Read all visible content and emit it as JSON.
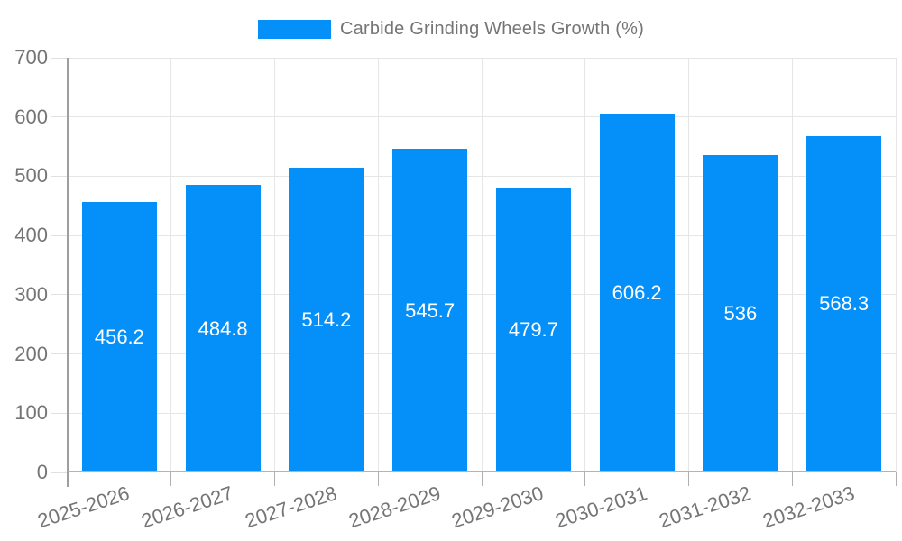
{
  "legend": {
    "label": "Carbide Grinding Wheels Growth (%)",
    "swatch_color": "#0590f9"
  },
  "chart_data": {
    "type": "bar",
    "title": "Carbide Grinding Wheels Growth (%)",
    "categories": [
      "2025-2026",
      "2026-2027",
      "2027-2028",
      "2028-2029",
      "2029-2030",
      "2030-2031",
      "2031-2032",
      "2032-2033"
    ],
    "values": [
      456.2,
      484.8,
      514.2,
      545.7,
      479.7,
      606.2,
      536,
      568.3
    ],
    "value_labels": [
      "456.2",
      "484.8",
      "514.2",
      "545.7",
      "479.7",
      "606.2",
      "536",
      "568.3"
    ],
    "xlabel": "",
    "ylabel": "",
    "ylim": [
      0,
      700
    ],
    "yticks": [
      0,
      100,
      200,
      300,
      400,
      500,
      600,
      700
    ],
    "grid": true,
    "legend_position": "top-center",
    "x_label_rotation_deg": -18,
    "colors": {
      "bar": "#0590f9",
      "bar_value_text": "#ffffff",
      "axis_text": "#757575",
      "gridline": "#e6e6e6",
      "axis_line": "#9e9e9e",
      "baseline": "#b3b3b3",
      "category_tick": "#b0b0b0"
    }
  }
}
